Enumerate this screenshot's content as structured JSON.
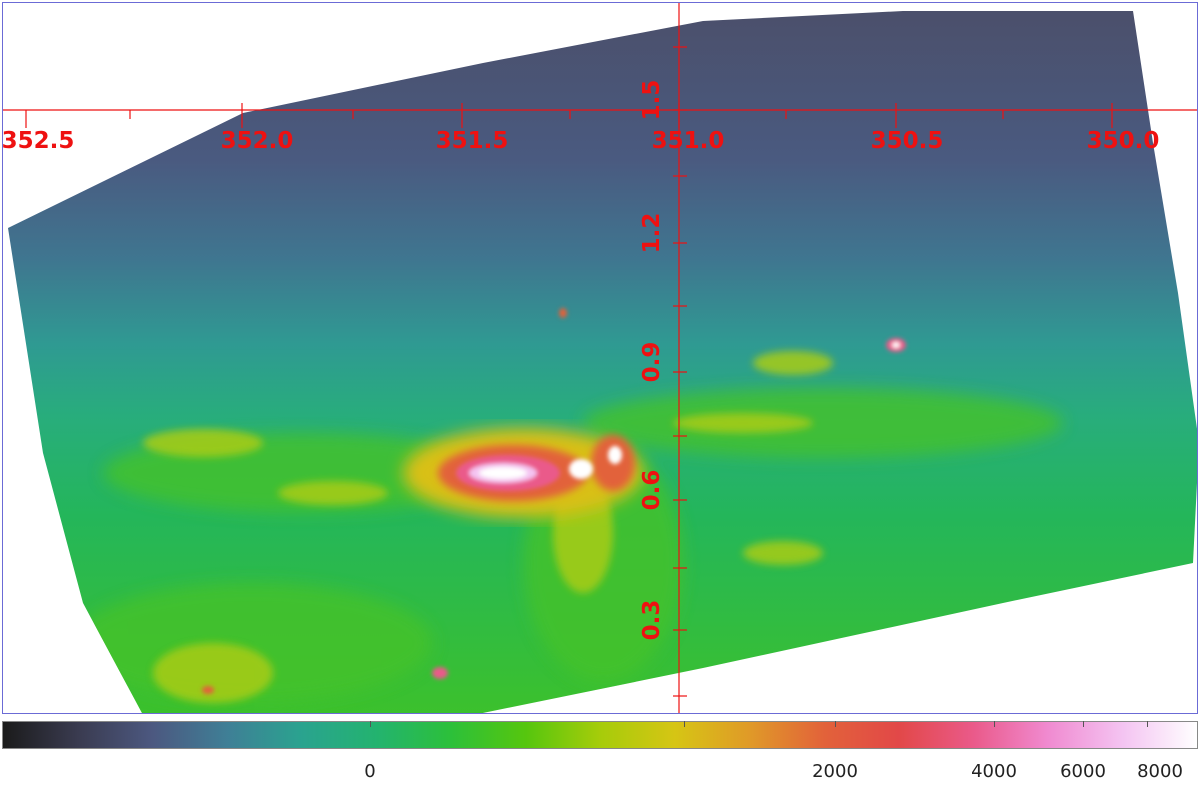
{
  "image": {
    "description_colors": {
      "background": "#ffffff",
      "frame": "#6b6bd6",
      "grid": "#ee1111",
      "label": "#ee1111"
    }
  },
  "longitude_labels": [
    "352.5",
    "352.0",
    "351.5",
    "351.0",
    "350.5",
    "350.0"
  ],
  "latitude_labels": [
    "1.5",
    "1.2",
    "0.9",
    "0.6",
    "0.3"
  ],
  "colorbar": {
    "labels": [
      "0",
      "2000",
      "4000",
      "6000",
      "8000"
    ],
    "colormap": [
      "#1b1b1b",
      "#3a3b50",
      "#4c5880",
      "#3f7f96",
      "#2aa38f",
      "#23b36f",
      "#2cc03a",
      "#56c60e",
      "#a6cc0a",
      "#d6c514",
      "#e09a28",
      "#e2623a",
      "#e24848",
      "#ea5a8a",
      "#f08ad0",
      "#f4c4f2",
      "#ffffff"
    ]
  }
}
